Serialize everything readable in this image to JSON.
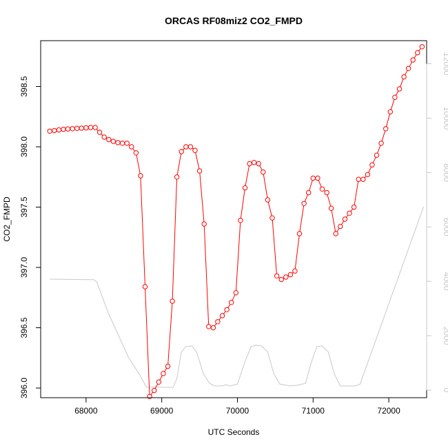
{
  "chart_data": {
    "type": "line",
    "title": "ORCAS RF08miz2 CO2_FMPD",
    "xlabel": "UTC Seconds",
    "ylabel": "CO2_FMPD",
    "xlim": [
      67400,
      72500
    ],
    "ylim": [
      395.92,
      398.88
    ],
    "y2lim": [
      -280,
      12850
    ],
    "x_ticks": [
      68000,
      69000,
      70000,
      71000,
      72000
    ],
    "y_ticks": [
      396.0,
      396.5,
      397.0,
      397.5,
      398.0,
      398.5
    ],
    "y_tick_labels": [
      "396.0",
      "396.5",
      "397.0",
      "397.5",
      "398.0",
      "398.5"
    ],
    "y2_ticks": [
      0,
      2000,
      4000,
      6000,
      8000,
      10000,
      12000
    ],
    "series": [
      {
        "axis": "left",
        "color": "#ff0000",
        "marker": "circle",
        "x": [
          67520,
          67580,
          67640,
          67700,
          67760,
          67820,
          67880,
          67940,
          68000,
          68060,
          68120,
          68180,
          68240,
          68300,
          68360,
          68420,
          68480,
          68540,
          68600,
          68660,
          68720,
          68780,
          68840,
          68900,
          68960,
          69020,
          69080,
          69140,
          69200,
          69260,
          69320,
          69380,
          69440,
          69500,
          69560,
          69620,
          69680,
          69740,
          69800,
          69860,
          69920,
          69980,
          70040,
          70100,
          70160,
          70220,
          70280,
          70340,
          70400,
          70460,
          70520,
          70580,
          70640,
          70700,
          70760,
          70820,
          70880,
          70940,
          71000,
          71060,
          71120,
          71180,
          71240,
          71300,
          71360,
          71420,
          71480,
          71540,
          71600,
          71660,
          71720,
          71780,
          71840,
          71900,
          71960,
          72020,
          72080,
          72140,
          72200,
          72260,
          72320,
          72380,
          72440
        ],
        "y": [
          398.13,
          398.135,
          398.14,
          398.145,
          398.148,
          398.15,
          398.153,
          398.155,
          398.157,
          398.16,
          398.16,
          398.12,
          398.08,
          398.06,
          398.045,
          398.035,
          398.03,
          398.03,
          398.0,
          397.95,
          397.76,
          396.84,
          395.93,
          395.98,
          396.05,
          396.12,
          396.18,
          396.72,
          397.75,
          397.96,
          398.0,
          398.0,
          397.97,
          397.8,
          397.36,
          396.51,
          396.5,
          396.55,
          396.6,
          396.65,
          396.71,
          396.79,
          397.39,
          397.66,
          397.86,
          397.87,
          397.86,
          397.79,
          397.56,
          397.41,
          396.93,
          396.9,
          396.92,
          396.94,
          396.97,
          397.28,
          397.53,
          397.62,
          397.74,
          397.74,
          397.65,
          397.62,
          397.49,
          397.28,
          397.34,
          397.4,
          397.45,
          397.5,
          397.73,
          397.73,
          397.77,
          397.85,
          397.93,
          398.03,
          398.15,
          398.29,
          398.41,
          398.48,
          398.58,
          398.65,
          398.72,
          398.78,
          398.83
        ]
      },
      {
        "axis": "right",
        "color": "#c8c8c8",
        "marker": "none",
        "x": [
          67520,
          68100,
          68140,
          68300,
          68560,
          68700,
          68800,
          68900,
          69050,
          69150,
          69200,
          69260,
          69320,
          69400,
          69460,
          69550,
          69630,
          69700,
          69800,
          69850,
          69900,
          70000,
          70100,
          70180,
          70250,
          70320,
          70400,
          70480,
          70560,
          70700,
          70800,
          70900,
          70980,
          71050,
          71120,
          71200,
          71280,
          71360,
          71460,
          71560,
          71620,
          72460
        ],
        "y": [
          4080,
          4060,
          3980,
          2800,
          1200,
          600,
          100,
          120,
          100,
          100,
          420,
          1400,
          1600,
          1620,
          1400,
          600,
          250,
          150,
          150,
          200,
          150,
          220,
          1050,
          1600,
          1650,
          1620,
          1400,
          600,
          220,
          150,
          180,
          250,
          1050,
          1600,
          1620,
          1400,
          600,
          150,
          150,
          150,
          220,
          6750
        ]
      }
    ]
  }
}
